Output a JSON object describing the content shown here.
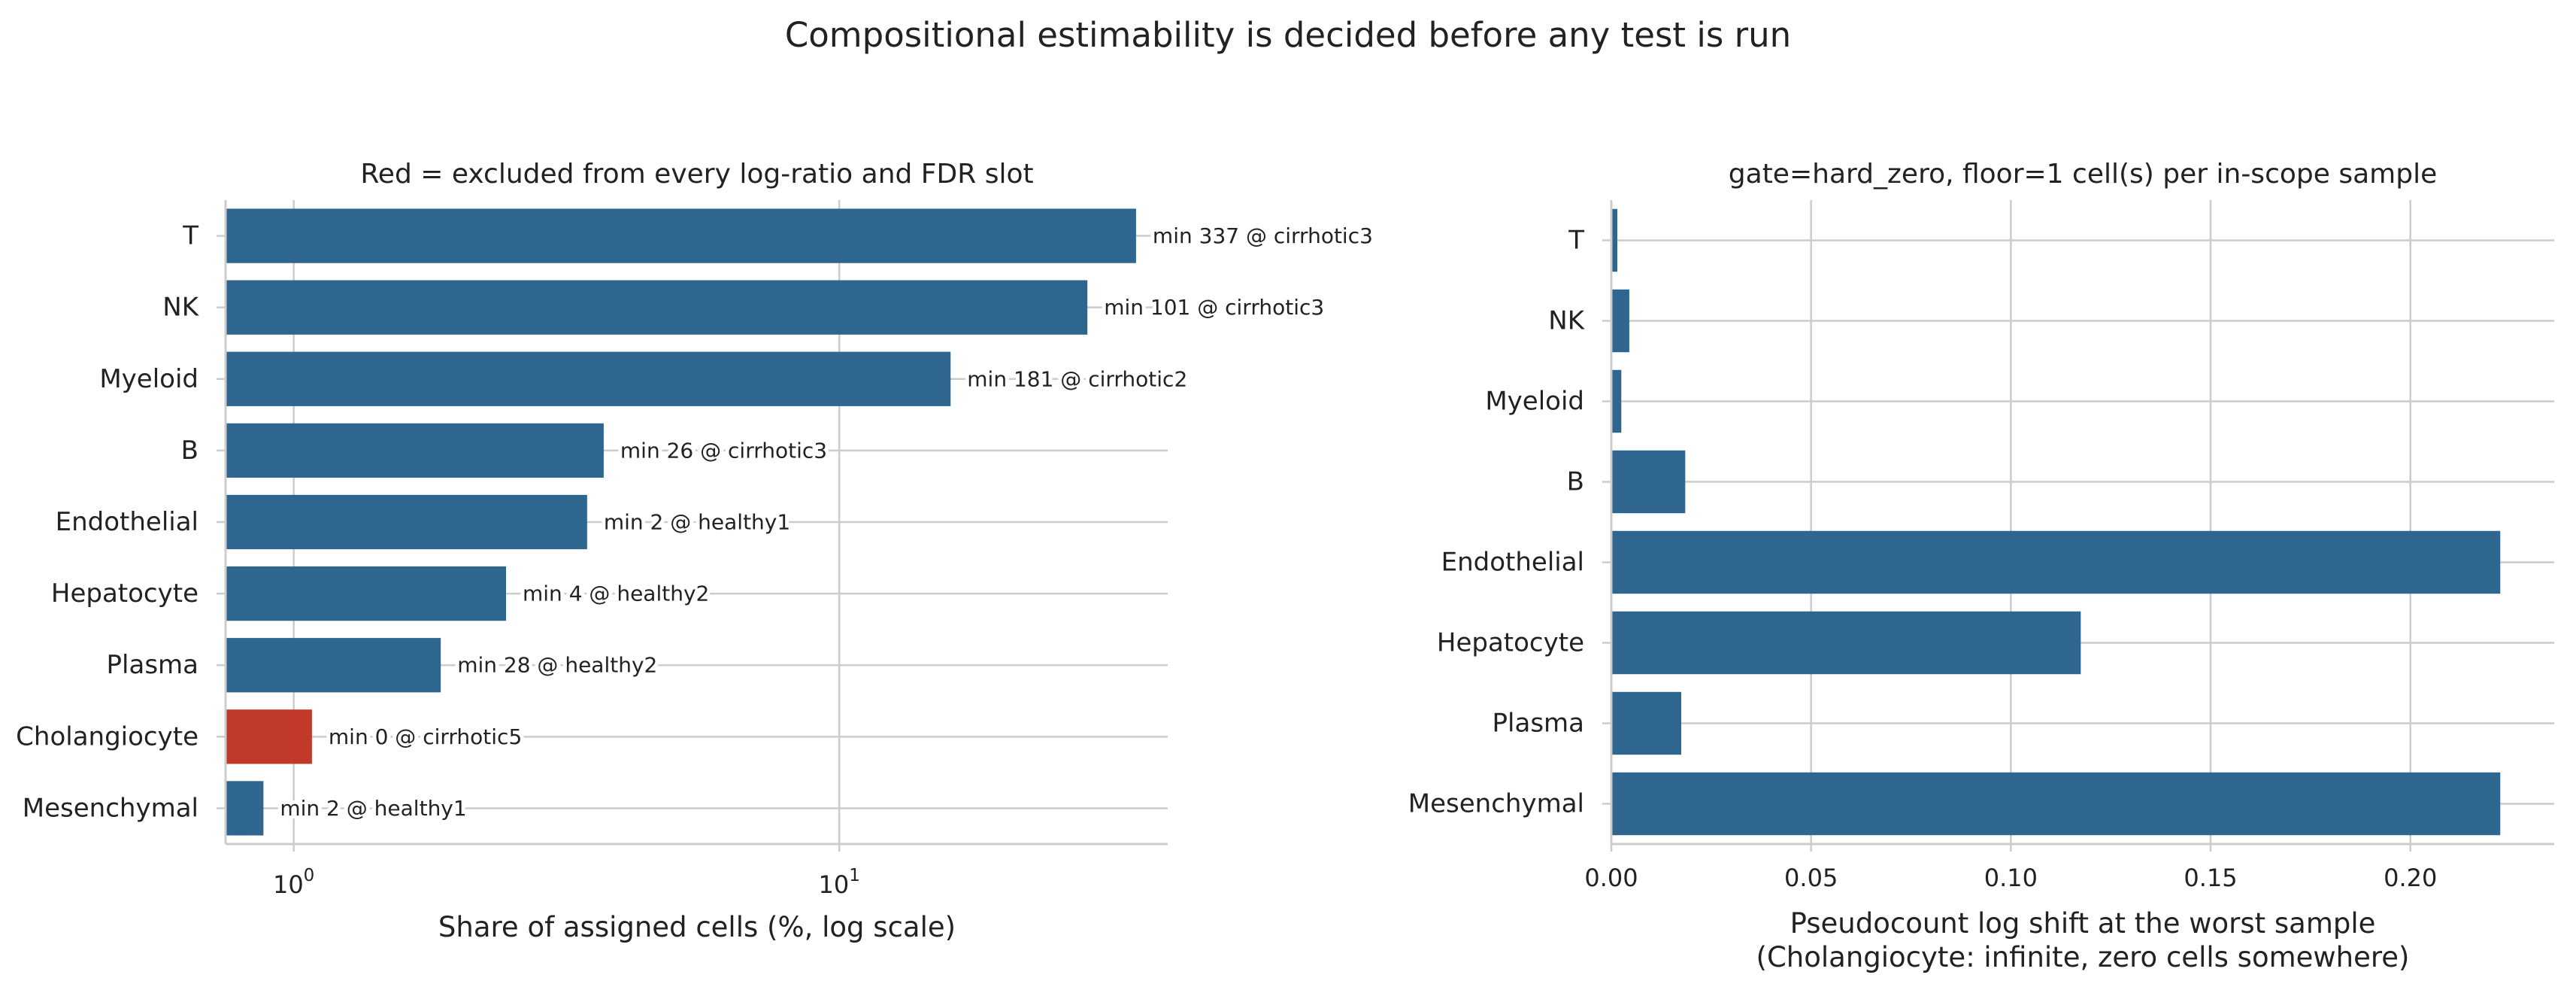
{
  "figure": {
    "suptitle": "Compositional estimability is decided before any test is run"
  },
  "colors": {
    "included": "#2e668f",
    "excluded": "#c0392b",
    "grid": "#cccccc",
    "spine": "#cccccc",
    "text": "#222222"
  },
  "chart_data": [
    {
      "type": "bar",
      "orientation": "horizontal",
      "title": "Red = excluded from every log-ratio and FDR slot",
      "xlabel": "Share of assigned cells (%, log scale)",
      "xscale": "log",
      "xlim": [
        0.75,
        40
      ],
      "xticks": [
        {
          "value": 1,
          "base": "10",
          "exp": "0"
        },
        {
          "value": 10,
          "base": "10",
          "exp": "1"
        }
      ],
      "grid": true,
      "categories": [
        "T",
        "NK",
        "Myeloid",
        "B",
        "Endothelial",
        "Hepatocyte",
        "Plasma",
        "Cholangiocyte",
        "Mesenchymal"
      ],
      "values": [
        35.0,
        28.5,
        16.0,
        3.7,
        3.45,
        2.45,
        1.86,
        1.08,
        0.88
      ],
      "excluded": [
        false,
        false,
        false,
        false,
        false,
        false,
        false,
        true,
        false
      ],
      "annotations": [
        "min 337 @ cirrhotic3",
        "min 101 @ cirrhotic3",
        "min 181 @ cirrhotic2",
        "min 26 @ cirrhotic3",
        "min 2 @ healthy1",
        "min 4 @ healthy2",
        "min 28 @ healthy2",
        "min 0 @ cirrhotic5",
        "min 2 @ healthy1"
      ]
    },
    {
      "type": "bar",
      "orientation": "horizontal",
      "title": "gate=hard_zero, floor=1 cell(s) per in-scope sample",
      "xlabel_lines": [
        "Pseudocount log shift at the worst sample",
        "(Cholangiocyte: infinite, zero cells somewhere)"
      ],
      "xlim": [
        0,
        0.236
      ],
      "xticks": [
        0.0,
        0.05,
        0.1,
        0.15,
        0.2
      ],
      "xtick_labels": [
        "0.00",
        "0.05",
        "0.10",
        "0.15",
        "0.20"
      ],
      "grid": true,
      "categories": [
        "T",
        "NK",
        "Myeloid",
        "B",
        "Endothelial",
        "Hepatocyte",
        "Plasma",
        "Mesenchymal"
      ],
      "values": [
        0.0015,
        0.0045,
        0.0025,
        0.0185,
        0.2225,
        0.1175,
        0.0175,
        0.2225
      ]
    }
  ]
}
